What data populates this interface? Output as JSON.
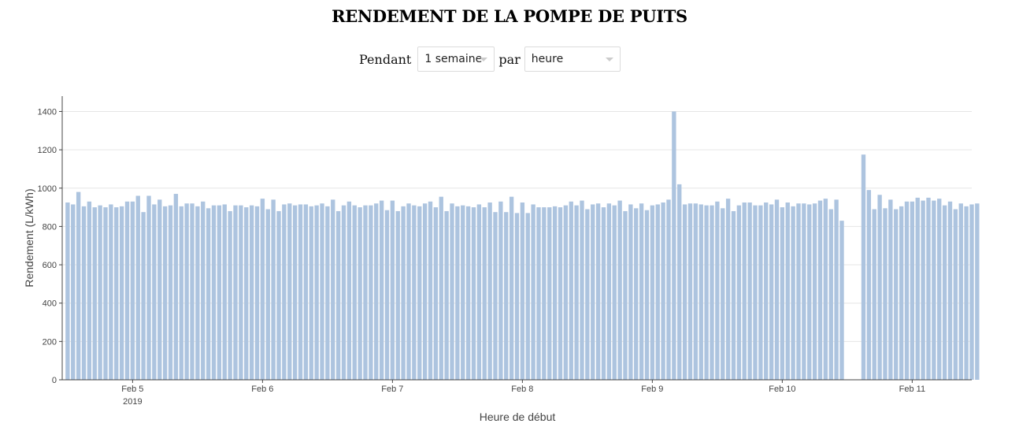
{
  "title": "RENDEMENT DE LA POMPE DE PUITS",
  "controls": {
    "period_label": "Pendant",
    "period_value": "1 semaine",
    "by_label": "par",
    "granularity_value": "heure"
  },
  "colors": {
    "bar": "#adc4df",
    "axis": "#444444",
    "grid": "#e6e6e6",
    "text": "#444444"
  },
  "chart_data": {
    "type": "bar",
    "xlabel": "Heure de début",
    "ylabel": "Rendement (L/kWh)",
    "ylim": [
      0,
      1480
    ],
    "yticks": [
      0,
      200,
      400,
      600,
      800,
      1000,
      1200,
      1400
    ],
    "xticks": [
      {
        "at": "2019-02-05T12:00",
        "label": "Feb 5",
        "sublabel": "2019"
      },
      {
        "at": "2019-02-06T12:00",
        "label": "Feb 6"
      },
      {
        "at": "2019-02-07T12:00",
        "label": "Feb 7"
      },
      {
        "at": "2019-02-08T12:00",
        "label": "Feb 8"
      },
      {
        "at": "2019-02-09T12:00",
        "label": "Feb 9"
      },
      {
        "at": "2019-02-10T12:00",
        "label": "Feb 10"
      },
      {
        "at": "2019-02-11T12:00",
        "label": "Feb 11"
      }
    ],
    "x_start": "2019-02-04T23:00",
    "x_end": "2019-02-11T23:00",
    "x_first_bar": "2019-02-05T00:00",
    "gridlines": true,
    "values": [
      925,
      915,
      980,
      905,
      930,
      900,
      910,
      900,
      915,
      900,
      905,
      930,
      930,
      960,
      875,
      960,
      915,
      940,
      905,
      910,
      970,
      905,
      920,
      920,
      905,
      930,
      895,
      910,
      910,
      915,
      880,
      910,
      910,
      900,
      910,
      905,
      945,
      890,
      940,
      880,
      915,
      920,
      910,
      915,
      915,
      905,
      910,
      920,
      905,
      940,
      880,
      910,
      930,
      910,
      900,
      910,
      910,
      920,
      935,
      885,
      935,
      880,
      905,
      920,
      910,
      905,
      920,
      930,
      900,
      955,
      880,
      920,
      905,
      910,
      905,
      900,
      915,
      900,
      925,
      875,
      930,
      875,
      955,
      870,
      925,
      870,
      915,
      900,
      900,
      900,
      905,
      900,
      910,
      930,
      910,
      935,
      890,
      915,
      920,
      900,
      920,
      910,
      935,
      880,
      915,
      895,
      920,
      885,
      910,
      915,
      925,
      940,
      1400,
      1020,
      915,
      920,
      920,
      915,
      910,
      910,
      930,
      895,
      945,
      880,
      910,
      925,
      925,
      910,
      910,
      925,
      915,
      940,
      900,
      925,
      905,
      920,
      920,
      915,
      920,
      935,
      945,
      890,
      940,
      830,
      null,
      null,
      null,
      1175,
      990,
      890,
      965,
      895,
      940,
      890,
      905,
      930,
      930,
      950,
      935,
      950,
      935,
      945,
      910,
      930,
      890,
      920,
      905,
      915,
      920
    ]
  }
}
